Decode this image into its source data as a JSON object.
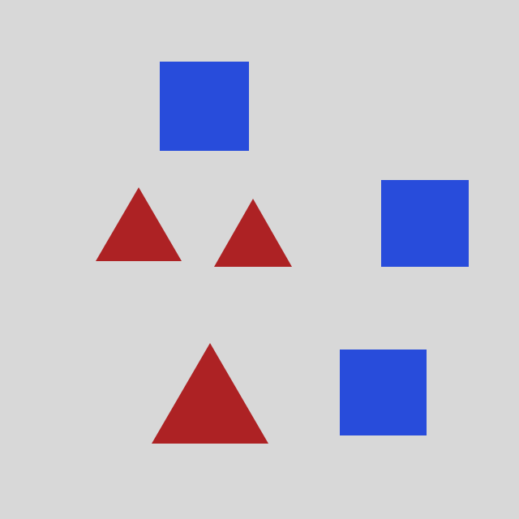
{
  "canvas": {
    "background": "#d8d8d8"
  },
  "palette": {
    "square": "#284cdb",
    "triangle": "#ad2224"
  },
  "shapes": [
    {
      "kind": "square",
      "color": "square"
    },
    {
      "kind": "triangle",
      "color": "triangle"
    },
    {
      "kind": "triangle",
      "color": "triangle"
    },
    {
      "kind": "square",
      "color": "square"
    },
    {
      "kind": "triangle",
      "color": "triangle"
    },
    {
      "kind": "square",
      "color": "square"
    }
  ]
}
